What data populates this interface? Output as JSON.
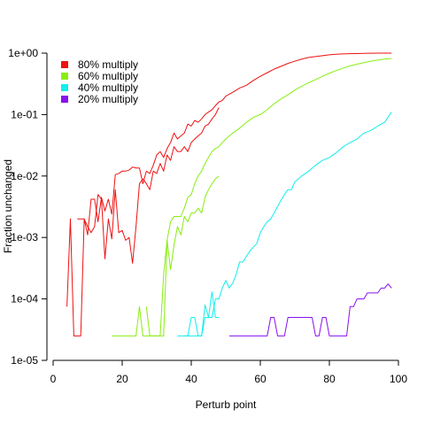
{
  "chart_data": {
    "type": "line",
    "title": "",
    "xlabel": "Perturb point",
    "ylabel": "Fraction unchanged",
    "xlim": [
      0,
      100
    ],
    "ylim": [
      1e-05,
      1
    ],
    "yscale": "log",
    "xticks": [
      0,
      20,
      40,
      60,
      80,
      100
    ],
    "xtick_labels": [
      "0",
      "20",
      "40",
      "60",
      "80",
      "100"
    ],
    "yticks": [
      1e-05,
      0.0001,
      0.001,
      0.01,
      0.1,
      1
    ],
    "ytick_labels": [
      "1e-05",
      "1e-04",
      "1e-03",
      "1e-02",
      "1e-01",
      "1e+00"
    ],
    "grid": false,
    "legend": {
      "position": "top-left",
      "entries": [
        {
          "label": "80% multiply",
          "color": "#ee1111"
        },
        {
          "label": "60% multiply",
          "color": "#88ee11"
        },
        {
          "label": "40% multiply",
          "color": "#11eeee"
        },
        {
          "label": "20% multiply",
          "color": "#8811ee"
        }
      ]
    },
    "series": [
      {
        "name": "80% multiply",
        "color": "#ee1111",
        "x": [
          4,
          5,
          6,
          7,
          8,
          9,
          10,
          11,
          12,
          13,
          14,
          15,
          16,
          17,
          18,
          19,
          20,
          21,
          22,
          23,
          24,
          25,
          26,
          27,
          28,
          29,
          30,
          31,
          32,
          33,
          34,
          35,
          36,
          37,
          38,
          39,
          40,
          41,
          42,
          43,
          44,
          45,
          46,
          47,
          48,
          49,
          50,
          52,
          54,
          56,
          58,
          60,
          62,
          64,
          66,
          68,
          70,
          72,
          74,
          76,
          78,
          80,
          82,
          84,
          86,
          88,
          90,
          92,
          94,
          96,
          98
        ],
        "y": [
          7.5e-05,
          0.002,
          2.5e-05,
          2.5e-05,
          2.5e-05,
          0.002,
          0.0011,
          0.0042,
          0.0042,
          0.0018,
          0.0045,
          0.0027,
          0.0042,
          0.0024,
          0.0105,
          0.011,
          0.012,
          0.012,
          0.0125,
          0.014,
          0.0135,
          0.0135,
          0.0075,
          0.012,
          0.011,
          0.015,
          0.022,
          0.025,
          0.02,
          0.028,
          0.035,
          0.05,
          0.04,
          0.045,
          0.05,
          0.07,
          0.065,
          0.08,
          0.075,
          0.085,
          0.1,
          0.11,
          0.12,
          0.14,
          0.16,
          0.17,
          0.2,
          0.23,
          0.27,
          0.3,
          0.36,
          0.42,
          0.48,
          0.55,
          0.61,
          0.68,
          0.74,
          0.8,
          0.85,
          0.88,
          0.91,
          0.94,
          0.96,
          0.97,
          0.98,
          0.985,
          0.99,
          0.995,
          0.998,
          0.999,
          1.0
        ]
      },
      {
        "name": "",
        "color": "#ee1111",
        "x": [
          7,
          8,
          9,
          10,
          11,
          12,
          13,
          14,
          15,
          16,
          17,
          18,
          19,
          20,
          21,
          22,
          23,
          24,
          25,
          26,
          27,
          28,
          29,
          30,
          31,
          32,
          33,
          34,
          35,
          36,
          37,
          38,
          39,
          40,
          41,
          42,
          43,
          44,
          45,
          46,
          47,
          48
        ],
        "y": [
          0.002,
          0.002,
          0.002,
          0.0015,
          0.0012,
          0.0015,
          0.005,
          0.0042,
          0.00045,
          0.002,
          0.00095,
          0.006,
          0.0012,
          0.0013,
          0.0009,
          0.001,
          0.00038,
          0.0015,
          0.0075,
          0.009,
          0.0075,
          0.006,
          0.012,
          0.011,
          0.016,
          0.012,
          0.022,
          0.018,
          0.03,
          0.025,
          0.025,
          0.03,
          0.025,
          0.035,
          0.04,
          0.045,
          0.05,
          0.065,
          0.07,
          0.085,
          0.1,
          0.13
        ]
      },
      {
        "name": "60% multiply",
        "color": "#88ee11",
        "x": [
          17,
          20,
          22,
          23,
          24,
          25,
          26,
          27,
          28,
          29,
          30,
          31,
          32,
          33,
          34,
          35,
          36,
          37,
          38,
          39,
          40,
          41,
          42,
          43,
          44,
          45,
          46,
          47,
          48,
          49,
          50,
          52,
          54,
          56,
          58,
          60,
          62,
          64,
          66,
          68,
          70,
          72,
          74,
          76,
          78,
          80,
          82,
          84,
          86,
          88,
          90,
          92,
          94,
          96,
          98
        ],
        "y": [
          2.5e-05,
          2.5e-05,
          2.5e-05,
          2.5e-05,
          2.5e-05,
          7.5e-05,
          2.5e-05,
          2.5e-05,
          2.5e-05,
          2.5e-05,
          2.5e-05,
          2.5e-05,
          2.5e-05,
          0.0009,
          0.0018,
          0.0022,
          0.0022,
          0.0022,
          0.003,
          0.0045,
          0.005,
          0.0075,
          0.01,
          0.012,
          0.016,
          0.02,
          0.025,
          0.028,
          0.03,
          0.035,
          0.04,
          0.05,
          0.06,
          0.075,
          0.09,
          0.1,
          0.12,
          0.15,
          0.18,
          0.21,
          0.25,
          0.29,
          0.33,
          0.37,
          0.42,
          0.47,
          0.52,
          0.57,
          0.62,
          0.66,
          0.7,
          0.74,
          0.77,
          0.8,
          0.82
        ]
      },
      {
        "name": "",
        "color": "#88ee11",
        "x": [
          27,
          28,
          29,
          30,
          31,
          32,
          33,
          34,
          35,
          36,
          37,
          38,
          39,
          40,
          41,
          42,
          43,
          44,
          45,
          46,
          47,
          48
        ],
        "y": [
          7.5e-05,
          2.5e-05,
          2.5e-05,
          2.5e-05,
          2.5e-05,
          0.00025,
          0.0009,
          0.0003,
          0.00075,
          0.0015,
          0.0011,
          0.0022,
          0.0018,
          0.0025,
          0.0025,
          0.003,
          0.0025,
          0.0045,
          0.006,
          0.0075,
          0.009,
          0.01
        ]
      },
      {
        "name": "40% multiply",
        "color": "#11eeee",
        "x": [
          36,
          37,
          38,
          39,
          40,
          41,
          42,
          43,
          44,
          45,
          46,
          47,
          48,
          49,
          50,
          51,
          52,
          53,
          54,
          55,
          56,
          57,
          58,
          59,
          60,
          61,
          62,
          63,
          64,
          65,
          66,
          67,
          68,
          69,
          70,
          72,
          74,
          76,
          78,
          80,
          82,
          84,
          86,
          88,
          90,
          92,
          94,
          96,
          98
        ],
        "y": [
          2.5e-05,
          2.5e-05,
          2.5e-05,
          2.5e-05,
          2.5e-05,
          2.5e-05,
          2.5e-05,
          2.5e-05,
          5e-05,
          5e-05,
          5e-05,
          0.0001,
          0.0001,
          0.00015,
          0.0002,
          0.00015,
          0.00018,
          0.00025,
          0.0004,
          0.0004,
          0.0005,
          0.0006,
          0.0007,
          0.0008,
          0.0012,
          0.0015,
          0.0018,
          0.002,
          0.0025,
          0.0032,
          0.004,
          0.005,
          0.006,
          0.006,
          0.008,
          0.01,
          0.012,
          0.015,
          0.018,
          0.02,
          0.024,
          0.03,
          0.035,
          0.04,
          0.05,
          0.055,
          0.065,
          0.075,
          0.11
        ]
      },
      {
        "name": "",
        "color": "#11eeee",
        "x": [
          38,
          39,
          40,
          41,
          42,
          43,
          44,
          45,
          46,
          47,
          48
        ],
        "y": [
          2.5e-05,
          2.5e-05,
          5e-05,
          5e-05,
          2.5e-05,
          2.5e-05,
          8e-05,
          5e-05,
          0.00013,
          5e-05,
          5e-05
        ]
      },
      {
        "name": "20% multiply",
        "color": "#8811ee",
        "x": [
          51,
          53,
          55,
          57,
          59,
          61,
          62,
          63,
          64,
          65,
          66,
          67,
          68,
          69,
          70,
          71,
          72,
          73,
          74,
          75,
          76,
          77,
          78,
          79,
          80,
          81,
          82,
          83,
          84,
          85,
          86,
          87,
          88,
          89,
          90,
          91,
          92,
          93,
          94,
          95,
          96,
          97,
          98
        ],
        "y": [
          2.5e-05,
          2.5e-05,
          2.5e-05,
          2.5e-05,
          2.5e-05,
          2.5e-05,
          2.5e-05,
          5e-05,
          5e-05,
          2.5e-05,
          2.5e-05,
          2.5e-05,
          5e-05,
          5e-05,
          5e-05,
          5e-05,
          5e-05,
          5e-05,
          5e-05,
          5e-05,
          2.5e-05,
          2.5e-05,
          5e-05,
          5e-05,
          2.5e-05,
          2.5e-05,
          2.5e-05,
          2.5e-05,
          2.5e-05,
          2.5e-05,
          7.5e-05,
          7.5e-05,
          0.0001,
          0.0001,
          0.0001,
          0.000125,
          0.000125,
          0.000125,
          0.000125,
          0.00015,
          0.00015,
          0.000175,
          0.00015
        ]
      }
    ]
  }
}
